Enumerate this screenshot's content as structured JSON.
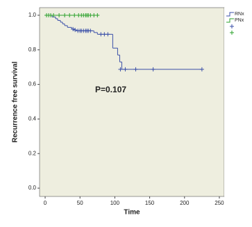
{
  "chart_data": {
    "type": "step",
    "xlabel": "Time",
    "ylabel": "Recurrence free survival",
    "annotation": "P=0.107",
    "xlim": [
      -8,
      257
    ],
    "ylim": [
      -0.048,
      1.044
    ],
    "xticks": [
      0,
      50,
      100,
      150,
      200,
      250
    ],
    "yticks": [
      {
        "value": 0,
        "label": "0.0"
      },
      {
        "value": 0.2,
        "label": "0.2"
      },
      {
        "value": 0.4,
        "label": "0.4"
      },
      {
        "value": 0.6,
        "label": "0.6"
      },
      {
        "value": 0.8,
        "label": "0.8"
      },
      {
        "value": 1,
        "label": "1.0"
      }
    ],
    "series": [
      {
        "name": "RNx",
        "color": "#3a4fa8",
        "x": [
          0,
          10,
          15,
          18,
          22,
          25,
          28,
          32,
          38,
          42,
          45,
          70,
          75,
          97,
          104,
          107,
          110,
          225
        ],
        "values": [
          1.0,
          0.99,
          0.98,
          0.97,
          0.96,
          0.95,
          0.94,
          0.93,
          0.92,
          0.915,
          0.91,
          0.9,
          0.89,
          0.81,
          0.77,
          0.73,
          0.687,
          0.687
        ],
        "censored": {
          "x": [
            40,
            43,
            47,
            50,
            52,
            55,
            58,
            60,
            62,
            65,
            80,
            85,
            90,
            108,
            115,
            130,
            155,
            225
          ],
          "y": [
            0.92,
            0.915,
            0.91,
            0.91,
            0.91,
            0.91,
            0.91,
            0.91,
            0.91,
            0.91,
            0.89,
            0.89,
            0.89,
            0.687,
            0.687,
            0.687,
            0.687,
            0.687
          ]
        }
      },
      {
        "name": "PNx",
        "color": "#2aa02a",
        "x": [
          0,
          75
        ],
        "values": [
          1.0,
          1.0
        ],
        "censored": {
          "x": [
            2,
            5,
            8,
            12,
            20,
            28,
            35,
            42,
            48,
            52,
            55,
            58,
            60,
            62,
            65,
            70,
            75
          ],
          "y": [
            1,
            1,
            1,
            1,
            1,
            1,
            1,
            1,
            1,
            1,
            1,
            1,
            1,
            1,
            1,
            1,
            1
          ]
        }
      }
    ]
  }
}
